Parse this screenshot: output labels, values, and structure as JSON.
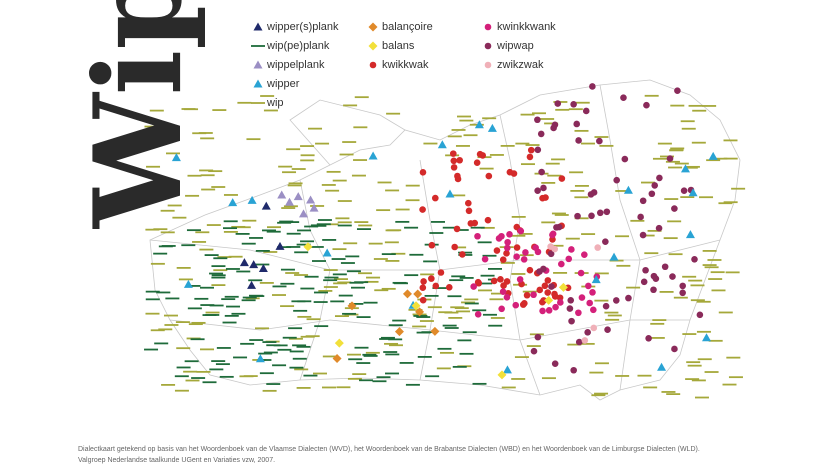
{
  "title": "Wip",
  "legend": [
    {
      "label": "wipper(s)plank",
      "symbol": "triangle",
      "color": "#1f2a6b"
    },
    {
      "label": "wip(pe)plank",
      "symbol": "line",
      "color": "#1e6b3a"
    },
    {
      "label": "wippelplank",
      "symbol": "triangle",
      "color": "#9b8fc4"
    },
    {
      "label": "wipper",
      "symbol": "triangle",
      "color": "#29a3d4"
    },
    {
      "label": "wip",
      "symbol": "line",
      "color": "#a5a83a"
    },
    {
      "label": "balançoire",
      "symbol": "diamond",
      "color": "#e08a2a"
    },
    {
      "label": "balans",
      "symbol": "diamond",
      "color": "#f2e03a"
    },
    {
      "label": "kwikkwak",
      "symbol": "circle",
      "color": "#d42a2a"
    },
    {
      "label": "kwinkkwank",
      "symbol": "circle",
      "color": "#d4207a"
    },
    {
      "label": "wipwap",
      "symbol": "circle",
      "color": "#8a2a5a"
    },
    {
      "label": "zwikzwak",
      "symbol": "circle",
      "color": "#f0b0b8"
    }
  ],
  "footnote": [
    "Dialectkaart getekend op basis van het Woordenboek van de Vlaamse Dialecten (WVD), het Woordenboek van de Brabantse Dialecten (WBD) en het Woordenboek van de Limburgse Dialecten (WLD).",
    "Valgroep Nederlandse taalkunde UGent en Variaties vzw, 2007."
  ]
}
